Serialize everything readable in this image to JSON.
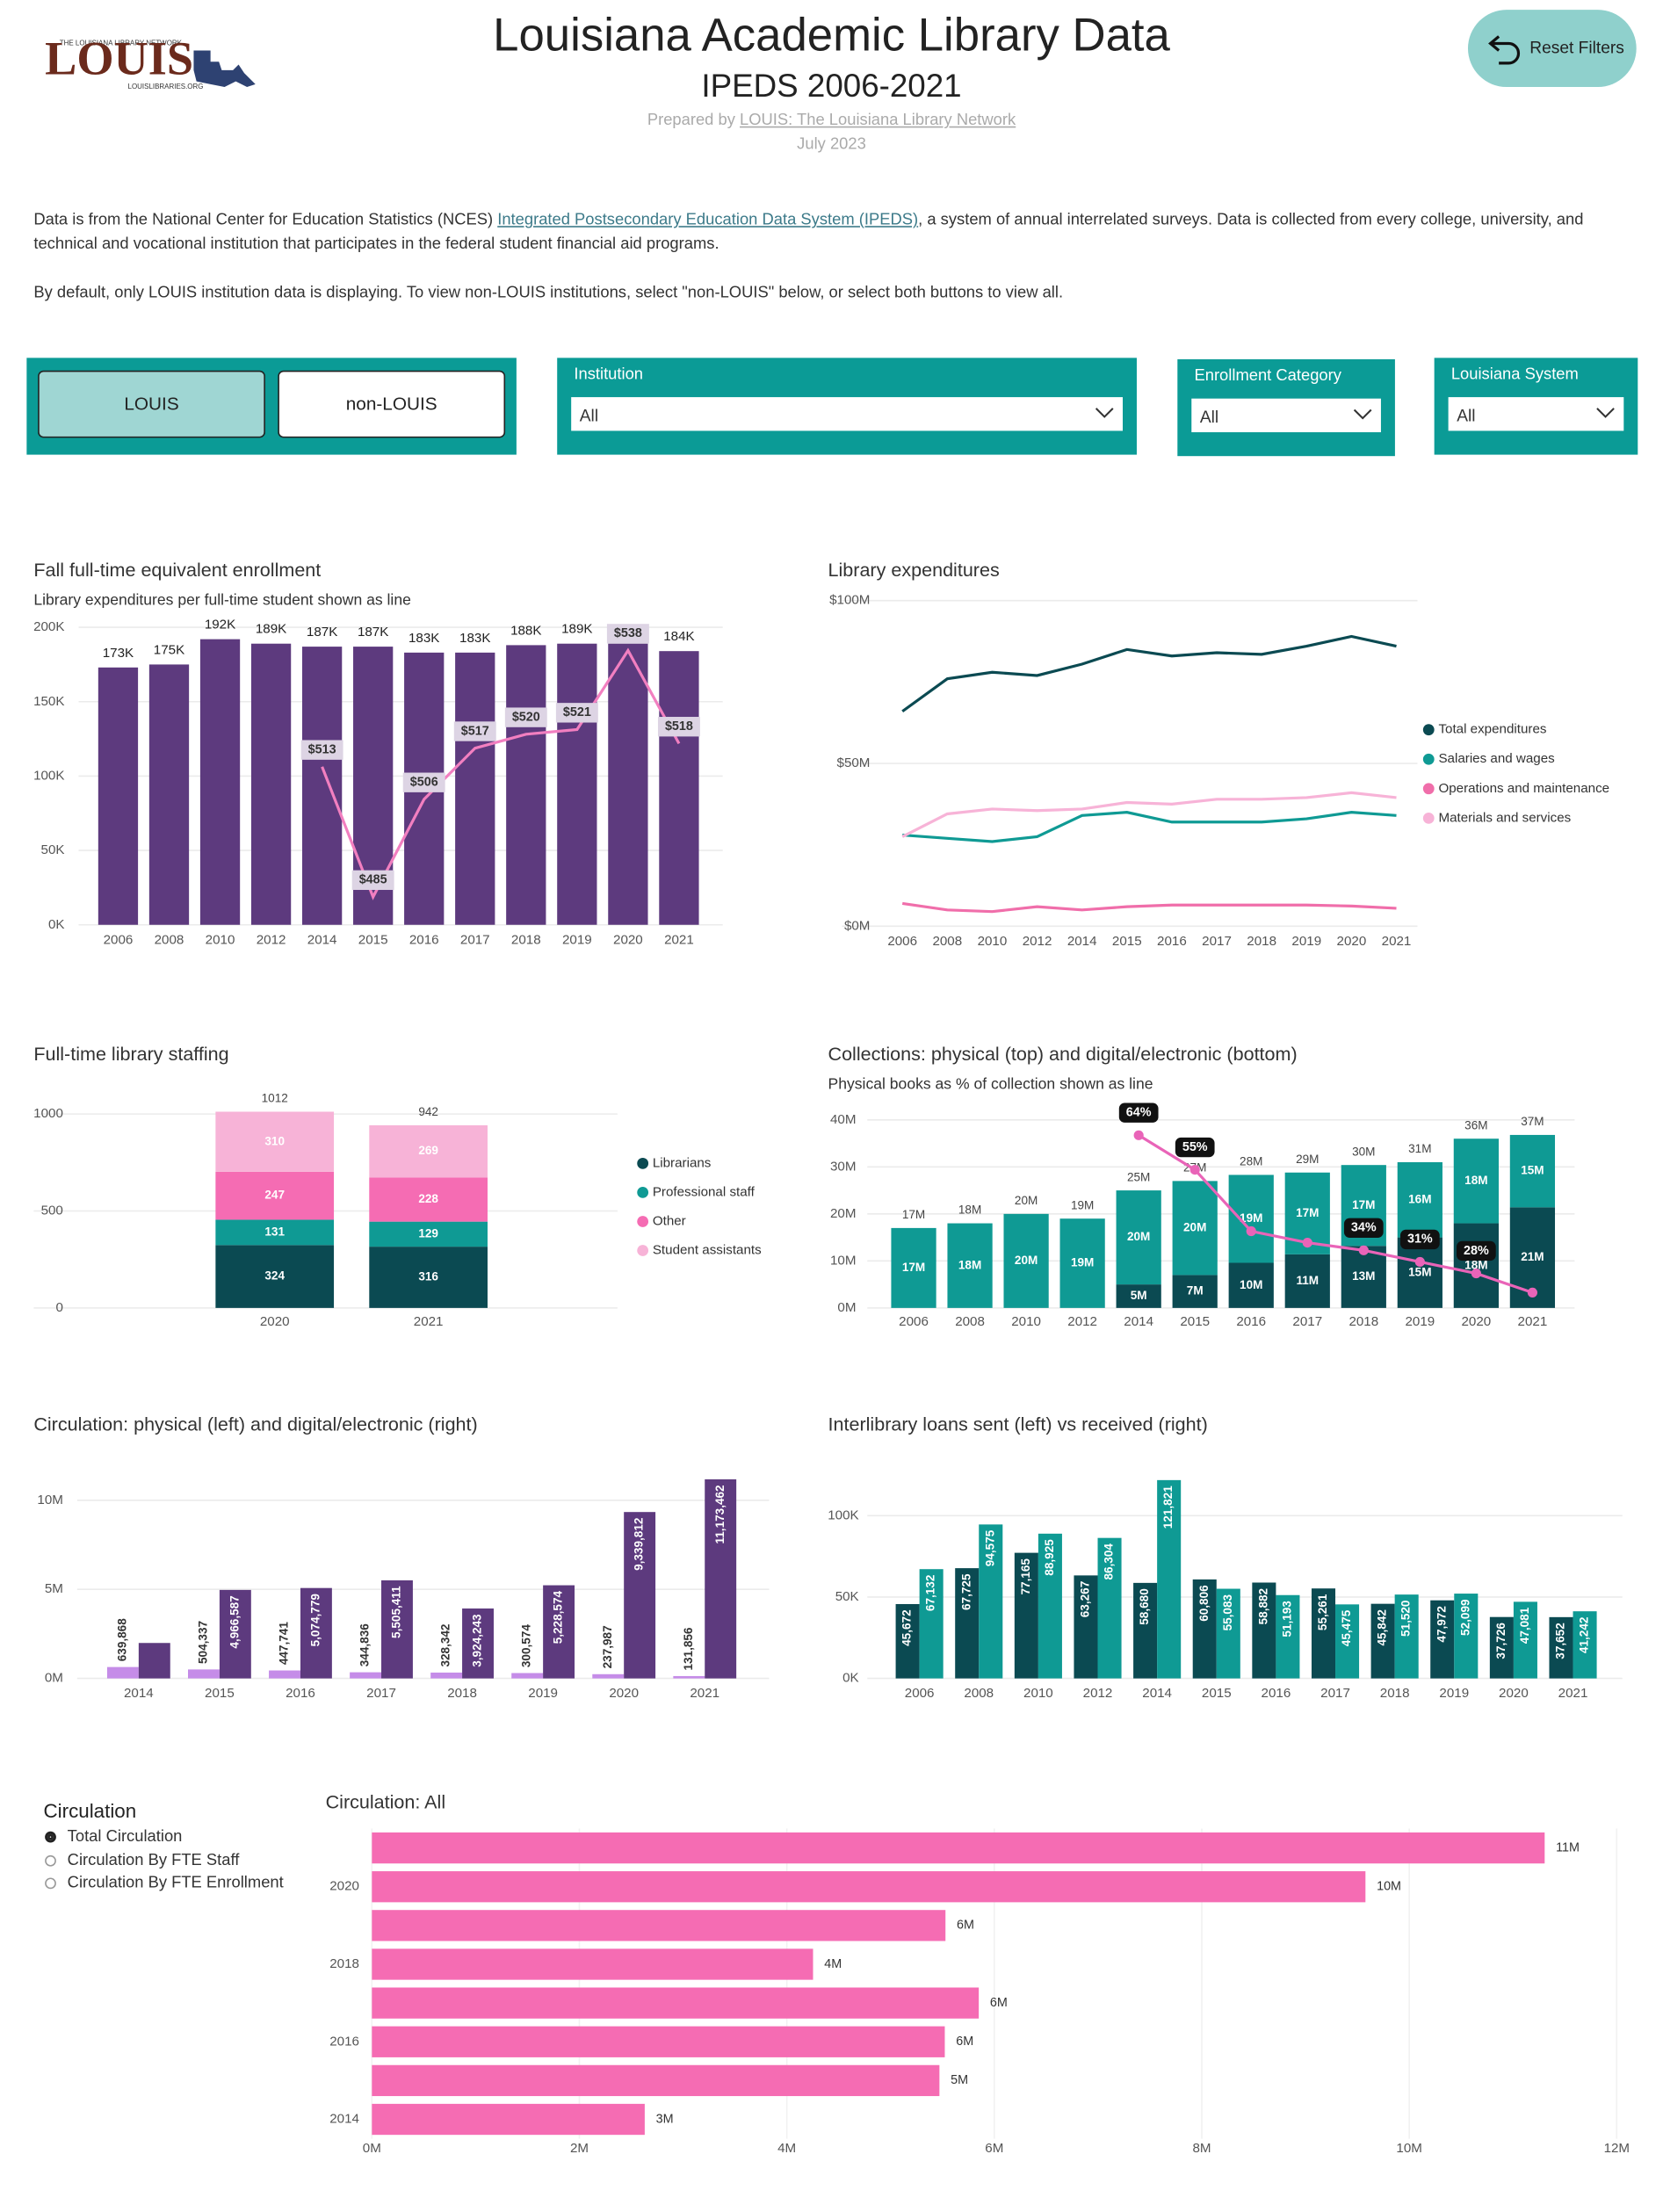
{
  "header": {
    "title": "Louisiana Academic Library Data",
    "subtitle": "IPEDS 2006-2021",
    "prepared_by": "Prepared by",
    "prepared_by_link": "LOUIS: The Louisiana Library Network",
    "date": "July 2023",
    "logo": {
      "name": "LOUIS",
      "tagline": "THE LOUISIANA LIBRARY NETWORK",
      "url": "LOUISLIBRARIES.ORG"
    },
    "reset_button": "Reset Filters"
  },
  "intro": {
    "p1_start": "Data is from the National Center for Education Statistics (NCES) ",
    "p1_link": "Integrated Postsecondary Education Data System (IPEDS)",
    "p1_end": ", a system of annual interrelated surveys. Data is collected from every college, university, and technical and vocational institution that participates in the federal student financial aid programs.",
    "p2": "By default, only LOUIS institution data is displaying. To view non-LOUIS institutions, select \"non-LOUIS\" below, or select both buttons to view all."
  },
  "filters": {
    "toggle": [
      {
        "label": "LOUIS",
        "selected": true
      },
      {
        "label": "non-LOUIS",
        "selected": false
      }
    ],
    "dropdowns": [
      {
        "label": "Institution",
        "value": "All"
      },
      {
        "label": "Enrollment Category",
        "value": "All"
      },
      {
        "label": "Louisiana System",
        "value": "All"
      }
    ]
  },
  "circulation_selector": {
    "title": "Circulation",
    "options": [
      {
        "label": "Total Circulation",
        "selected": true
      },
      {
        "label": "Circulation By FTE Staff",
        "selected": false
      },
      {
        "label": "Circulation By FTE Enrollment",
        "selected": false
      }
    ]
  },
  "chart_data": [
    {
      "type": "bar",
      "title": "Fall full-time equivalent enrollment",
      "subtitle": "Library expenditures per full-time student shown as line",
      "categories": [
        "2006",
        "2008",
        "2010",
        "2012",
        "2014",
        "2015",
        "2016",
        "2017",
        "2018",
        "2019",
        "2020",
        "2021"
      ],
      "series": [
        {
          "color": "#5d3a7e",
          "values": [
            173000,
            175000,
            192000,
            189000,
            187000,
            187000,
            183000,
            183000,
            188000,
            189000,
            189000,
            184000
          ],
          "value_labels": [
            "173K",
            "175K",
            "192K",
            "189K",
            "187K",
            "187K",
            "183K",
            "183K",
            "188K",
            "189K",
            "189K",
            "184K"
          ]
        },
        {
          "type": "line",
          "axis": "y2",
          "color": "#f27fc0",
          "values": [
            null,
            null,
            null,
            null,
            513,
            485,
            506,
            517,
            520,
            521,
            538,
            518
          ],
          "value_labels": [
            null,
            null,
            null,
            null,
            "$513",
            "$485",
            "$506",
            "$517",
            "$520",
            "$521",
            "$538",
            "$518"
          ]
        }
      ],
      "ylim": [
        0,
        200000
      ],
      "yticks": [
        {
          "value": 0,
          "label": "0K"
        },
        {
          "value": 50000,
          "label": "50K"
        },
        {
          "value": 100000,
          "label": "100K"
        },
        {
          "value": 150000,
          "label": "150K"
        },
        {
          "value": 200000,
          "label": "200K"
        }
      ],
      "y2lim": [
        479,
        543
      ],
      "grid": true
    },
    {
      "type": "line",
      "title": "Library expenditures",
      "categories": [
        "2006",
        "2008",
        "2010",
        "2012",
        "2014",
        "2015",
        "2016",
        "2017",
        "2018",
        "2019",
        "2020",
        "2021"
      ],
      "series": [
        {
          "name": "Total expenditures",
          "color": "#0b4a52",
          "values": [
            66000000,
            76000000,
            78000000,
            77000000,
            80500000,
            85000000,
            83000000,
            84000000,
            83500000,
            86000000,
            89000000,
            86000000
          ]
        },
        {
          "name": "Salaries and wages",
          "color": "#0f9a94",
          "values": [
            28000000,
            27000000,
            26000000,
            27500000,
            34000000,
            35000000,
            32000000,
            32000000,
            32000000,
            33000000,
            35000000,
            34000000
          ]
        },
        {
          "name": "Operations and maintenance",
          "color": "#f06eaa",
          "values": [
            7000000,
            5000000,
            4500000,
            6000000,
            5000000,
            6000000,
            6500000,
            6500000,
            6500000,
            6500000,
            6200000,
            5500000
          ]
        },
        {
          "name": "Materials and services",
          "color": "#f7b3d7",
          "values": [
            27500000,
            34500000,
            36000000,
            35500000,
            36000000,
            38000000,
            37500000,
            39000000,
            39000000,
            39500000,
            41000000,
            39500000
          ]
        }
      ],
      "ylim": [
        0,
        100000000
      ],
      "yticks": [
        {
          "value": 0,
          "label": "$0M"
        },
        {
          "value": 50000000,
          "label": "$50M"
        },
        {
          "value": 100000000,
          "label": "$100M"
        }
      ],
      "grid": true,
      "legend": "right"
    },
    {
      "type": "bar",
      "title": "Full-time library staffing",
      "stacked": true,
      "categories": [
        "2020",
        "2021"
      ],
      "series": [
        {
          "name": "Librarians",
          "color": "#0b4a52",
          "values": [
            324,
            316
          ]
        },
        {
          "name": "Professional staff",
          "color": "#0f9a94",
          "values": [
            131,
            129
          ]
        },
        {
          "name": "Other",
          "color": "#f56cb3",
          "values": [
            247,
            228
          ]
        },
        {
          "name": "Student assistants",
          "color": "#f7b3d7",
          "values": [
            310,
            269
          ]
        }
      ],
      "totals": [
        1012,
        942
      ],
      "ylim": [
        0,
        1100
      ],
      "yticks": [
        0,
        500,
        1000
      ],
      "grid": true,
      "legend": "right"
    },
    {
      "type": "bar",
      "title": "Collections: physical (top) and digital/electronic (bottom)",
      "subtitle": "Physical books as % of collection shown as line",
      "stacked": true,
      "categories": [
        "2006",
        "2008",
        "2010",
        "2012",
        "2014",
        "2015",
        "2016",
        "2017",
        "2018",
        "2019",
        "2020",
        "2021"
      ],
      "series": [
        {
          "color": "#0b4a52",
          "values": [
            null,
            null,
            null,
            null,
            5000000,
            7000000,
            9600000,
            11400000,
            13200000,
            15000000,
            18000000,
            21400000
          ],
          "value_labels": [
            null,
            null,
            null,
            null,
            "5M",
            "7M",
            "10M",
            "11M",
            "13M",
            "15M",
            "18M",
            "21M"
          ]
        },
        {
          "color": "#0f9a94",
          "values": [
            17000000,
            18000000,
            20000000,
            19000000,
            20000000,
            20000000,
            18700000,
            17400000,
            17200000,
            16000000,
            18000000,
            15400000
          ],
          "value_labels": [
            "17M",
            "18M",
            "20M",
            "19M",
            "20M",
            "20M",
            "19M",
            "17M",
            "17M",
            "16M",
            "18M",
            "15M"
          ]
        },
        {
          "type": "line",
          "axis": "y2",
          "color": "#e964b8",
          "values": [
            null,
            null,
            null,
            null,
            64,
            55,
            39,
            36,
            34,
            31,
            28,
            23
          ],
          "value_labels": [
            null,
            null,
            null,
            null,
            "64%",
            "55%",
            null,
            null,
            "34%",
            "31%",
            "28%",
            null
          ]
        }
      ],
      "totals": [
        17000000,
        18000000,
        20000000,
        19000000,
        25000000,
        27000000,
        28300000,
        28800000,
        30400000,
        31000000,
        36000000,
        36800000
      ],
      "total_labels": [
        "17M",
        "18M",
        "20M",
        "19M",
        "25M",
        "27M",
        "28M",
        "29M",
        "30M",
        "31M",
        "36M",
        "37M"
      ],
      "ylim": [
        0,
        40000000
      ],
      "yticks": [
        {
          "value": 0,
          "label": "0M"
        },
        {
          "value": 10000000,
          "label": "10M"
        },
        {
          "value": 20000000,
          "label": "20M"
        },
        {
          "value": 30000000,
          "label": "30M"
        },
        {
          "value": 40000000,
          "label": "40M"
        }
      ],
      "y2lim": [
        19,
        68
      ],
      "grid": true
    },
    {
      "type": "bar",
      "title": "Circulation: physical (left) and digital/electronic (right)",
      "categories": [
        "2014",
        "2015",
        "2016",
        "2017",
        "2018",
        "2019",
        "2020",
        "2021"
      ],
      "series": [
        {
          "color": "#c58ce8",
          "values": [
            639868,
            504337,
            447741,
            344836,
            328342,
            300574,
            237987,
            131856
          ],
          "value_labels": [
            "639,868",
            "504,337",
            "447,741",
            "344,836",
            "328,342",
            "300,574",
            "237,987",
            "131,856"
          ]
        },
        {
          "color": "#5d3a7e",
          "values": [
            1990000,
            4966587,
            5074779,
            5505411,
            3924243,
            5228574,
            9339812,
            11173462
          ],
          "value_labels": [
            null,
            "4,966,587",
            "5,074,779",
            "5,505,411",
            "3,924,243",
            "5,228,574",
            "9,339,812",
            "11,173,462"
          ]
        }
      ],
      "ylim": [
        0,
        11500000
      ],
      "yticks": [
        {
          "value": 0,
          "label": "0M"
        },
        {
          "value": 5000000,
          "label": "5M"
        },
        {
          "value": 10000000,
          "label": "10M"
        }
      ],
      "grid": true
    },
    {
      "type": "bar",
      "title": "Interlibrary loans sent (left) vs received (right)",
      "categories": [
        "2006",
        "2008",
        "2010",
        "2012",
        "2014",
        "2015",
        "2016",
        "2017",
        "2018",
        "2019",
        "2020",
        "2021"
      ],
      "series": [
        {
          "color": "#0b4a52",
          "values": [
            45672,
            67725,
            77165,
            63267,
            58680,
            60806,
            58882,
            55261,
            45842,
            47972,
            37726,
            37652
          ],
          "value_labels": [
            "45,672",
            "67,725",
            "77,165",
            "63,267",
            "58,680",
            "60,806",
            "58,882",
            "55,261",
            "45,842",
            "47,972",
            "37,726",
            "37,652"
          ]
        },
        {
          "color": "#0f9a94",
          "values": [
            67132,
            94575,
            88925,
            86304,
            121821,
            55083,
            51193,
            45475,
            51520,
            52099,
            47081,
            41242
          ],
          "value_labels": [
            "67,132",
            "94,575",
            "88,925",
            "86,304",
            "121,821",
            "55,083",
            "51,193",
            "45,475",
            "51,520",
            "52,099",
            "47,081",
            "41,242"
          ]
        }
      ],
      "ylim": [
        0,
        125000
      ],
      "yticks": [
        {
          "value": 0,
          "label": "0K"
        },
        {
          "value": 50000,
          "label": "50K"
        },
        {
          "value": 100000,
          "label": "100K"
        }
      ],
      "grid": true
    },
    {
      "type": "hbar",
      "title": "Circulation: All",
      "categories": [
        null,
        "2020",
        null,
        "2018",
        null,
        "2016",
        null,
        "2014"
      ],
      "values": [
        11305318,
        9577799,
        5529148,
        4252585,
        5850247,
        5522520,
        5470924,
        2630000
      ],
      "value_labels": [
        "11M",
        "10M",
        "6M",
        "4M",
        "6M",
        "6M",
        "5M",
        "3M"
      ],
      "color": "#f56cb3",
      "xlim": [
        0,
        12000000
      ],
      "xticks": [
        {
          "value": 0,
          "label": "0M"
        },
        {
          "value": 2000000,
          "label": "2M"
        },
        {
          "value": 4000000,
          "label": "4M"
        },
        {
          "value": 6000000,
          "label": "6M"
        },
        {
          "value": 8000000,
          "label": "8M"
        },
        {
          "value": 10000000,
          "label": "10M"
        },
        {
          "value": 12000000,
          "label": "12M"
        }
      ],
      "grid": true
    }
  ]
}
